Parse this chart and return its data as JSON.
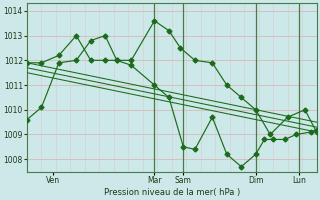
{
  "xlabel": "Pression niveau de la mer( hPa )",
  "bg_color": "#cce8e8",
  "grid_color_h": "#d8b8b8",
  "grid_color_v": "#d8c8c8",
  "line_color": "#1a6b1a",
  "spine_color": "#4a7a4a",
  "ylim": [
    1007.5,
    1014.3
  ],
  "yticks": [
    1008,
    1009,
    1010,
    1011,
    1012,
    1013,
    1014
  ],
  "xlim": [
    0,
    200
  ],
  "day_positions": [
    18,
    88,
    108,
    158,
    188
  ],
  "day_labels": [
    "Ven",
    "Mar",
    "Sam",
    "Dim",
    "Lun"
  ],
  "vline_positions": [
    88,
    108,
    158,
    188
  ],
  "series1_x": [
    0,
    10,
    22,
    34,
    44,
    54,
    62,
    72,
    88,
    98,
    106,
    116,
    128,
    138,
    148,
    158,
    168,
    180,
    192,
    200
  ],
  "series1_y": [
    1009.6,
    1010.1,
    1011.9,
    1012.0,
    1012.8,
    1013.0,
    1012.0,
    1012.0,
    1013.6,
    1013.2,
    1012.5,
    1012.0,
    1011.9,
    1011.0,
    1010.5,
    1010.0,
    1009.0,
    1009.7,
    1010.0,
    1009.1
  ],
  "series2_x": [
    0,
    10,
    22,
    34,
    44,
    54,
    62,
    72,
    88,
    98,
    108,
    116,
    128,
    138,
    148,
    158,
    164,
    170,
    178,
    186,
    196,
    200
  ],
  "series2_y": [
    1011.9,
    1011.9,
    1012.2,
    1013.0,
    1012.0,
    1012.0,
    1012.0,
    1011.8,
    1011.0,
    1010.5,
    1008.5,
    1008.4,
    1009.7,
    1008.2,
    1007.7,
    1008.2,
    1008.8,
    1008.8,
    1008.8,
    1009.0,
    1009.1,
    1009.2
  ],
  "trend_lines": [
    {
      "x": [
        0,
        200
      ],
      "y": [
        1011.9,
        1009.5
      ]
    },
    {
      "x": [
        0,
        200
      ],
      "y": [
        1011.7,
        1009.3
      ]
    },
    {
      "x": [
        0,
        200
      ],
      "y": [
        1011.5,
        1009.1
      ]
    }
  ]
}
